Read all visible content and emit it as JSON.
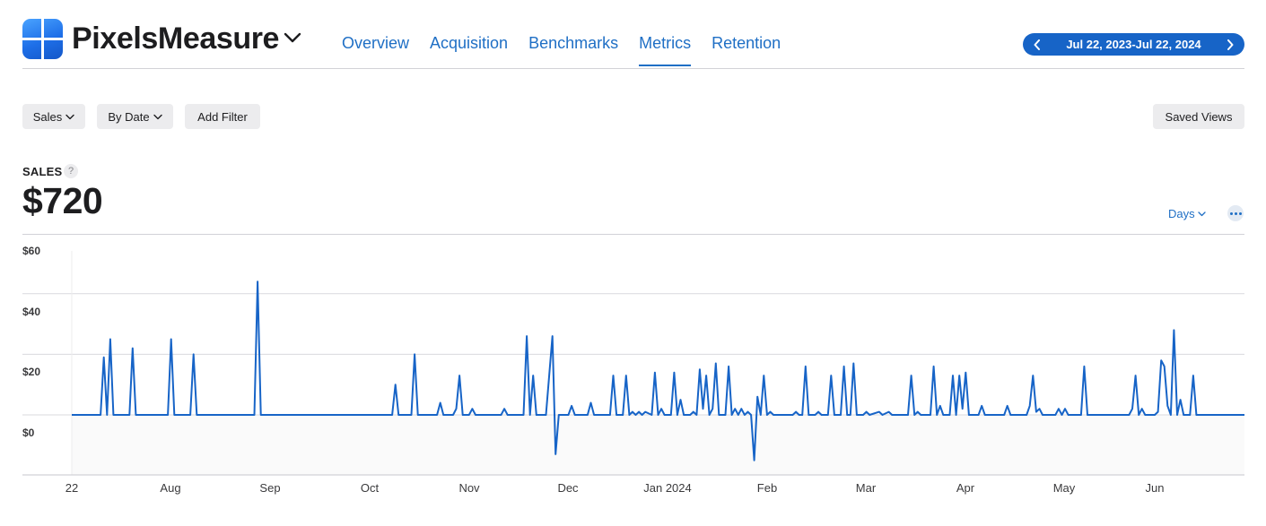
{
  "app": {
    "name": "PixelsMeasure",
    "icon": "app-grid-icon"
  },
  "nav": {
    "tabs": [
      {
        "label": "Overview",
        "active": false
      },
      {
        "label": "Acquisition",
        "active": false
      },
      {
        "label": "Benchmarks",
        "active": false
      },
      {
        "label": "Metrics",
        "active": true
      },
      {
        "label": "Retention",
        "active": false
      }
    ]
  },
  "date_range": {
    "label": "Jul 22, 2023-Jul 22, 2024",
    "prev_icon": "chevron-left-icon",
    "next_icon": "chevron-right-icon"
  },
  "filters": {
    "measure": "Sales",
    "group_by": "By Date",
    "add_filter": "Add Filter",
    "saved_views": "Saved Views"
  },
  "metric": {
    "label": "SALES",
    "help": "?",
    "value": "$720"
  },
  "granularity": {
    "label": "Days"
  },
  "colors": {
    "accent": "#1f6fc5",
    "line": "#1764c7",
    "pill": "#1764c7"
  },
  "chart_data": {
    "type": "line",
    "title": "",
    "xlabel": "",
    "ylabel": "",
    "x_range": [
      "2023-07-22",
      "2024-07-22"
    ],
    "ylim": [
      -15,
      60
    ],
    "y_ticks": [
      "$60",
      "$40",
      "$20",
      "$0"
    ],
    "x_ticks": [
      "22",
      "Aug",
      "Sep",
      "Oct",
      "Nov",
      "Dec",
      "Jan 2024",
      "Feb",
      "Mar",
      "Apr",
      "May",
      "Jun"
    ],
    "grid": true,
    "series": [
      {
        "color": "#1764c7",
        "points": [
          [
            "2023-07-22",
            0
          ],
          [
            "2023-07-31",
            0
          ],
          [
            "2023-08-01",
            19
          ],
          [
            "2023-08-02",
            0
          ],
          [
            "2023-08-03",
            25
          ],
          [
            "2023-08-04",
            0
          ],
          [
            "2023-08-09",
            0
          ],
          [
            "2023-08-10",
            22
          ],
          [
            "2023-08-11",
            0
          ],
          [
            "2023-08-21",
            0
          ],
          [
            "2023-08-22",
            25
          ],
          [
            "2023-08-23",
            0
          ],
          [
            "2023-08-28",
            0
          ],
          [
            "2023-08-29",
            20
          ],
          [
            "2023-08-30",
            0
          ],
          [
            "2023-08-28",
            0
          ],
          [
            "2023-09-17",
            0
          ],
          [
            "2023-09-18",
            44
          ],
          [
            "2023-09-19",
            0
          ],
          [
            "2023-10-30",
            0
          ],
          [
            "2023-10-31",
            10
          ],
          [
            "2023-11-01",
            0
          ],
          [
            "2023-11-05",
            0
          ],
          [
            "2023-11-06",
            20
          ],
          [
            "2023-11-07",
            0
          ],
          [
            "2023-11-13",
            0
          ],
          [
            "2023-11-14",
            4
          ],
          [
            "2023-11-15",
            0
          ],
          [
            "2023-11-18",
            0
          ],
          [
            "2023-11-19",
            2
          ],
          [
            "2023-11-20",
            13
          ],
          [
            "2023-11-21",
            0
          ],
          [
            "2023-11-23",
            0
          ],
          [
            "2023-11-24",
            2
          ],
          [
            "2023-11-25",
            0
          ],
          [
            "2023-12-03",
            0
          ],
          [
            "2023-12-04",
            2
          ],
          [
            "2023-12-05",
            0
          ],
          [
            "2023-12-10",
            0
          ],
          [
            "2023-12-11",
            26
          ],
          [
            "2023-12-12",
            0
          ],
          [
            "2023-12-13",
            13
          ],
          [
            "2023-12-14",
            0
          ],
          [
            "2023-12-17",
            0
          ],
          [
            "2023-12-18",
            13
          ],
          [
            "2023-12-19",
            26
          ],
          [
            "2023-12-20",
            -13
          ],
          [
            "2023-12-21",
            0
          ],
          [
            "2023-12-24",
            0
          ],
          [
            "2023-12-25",
            3
          ],
          [
            "2023-12-26",
            0
          ],
          [
            "2023-12-30",
            0
          ],
          [
            "2023-12-31",
            4
          ],
          [
            "2024-01-01",
            0
          ],
          [
            "2024-01-06",
            0
          ],
          [
            "2024-01-07",
            13
          ],
          [
            "2024-01-08",
            0
          ],
          [
            "2024-01-10",
            0
          ],
          [
            "2024-01-11",
            13
          ],
          [
            "2024-01-12",
            0
          ],
          [
            "2024-01-13",
            1
          ],
          [
            "2024-01-14",
            0
          ],
          [
            "2024-01-15",
            1
          ],
          [
            "2024-01-16",
            0
          ],
          [
            "2024-01-17",
            1
          ],
          [
            "2024-01-19",
            0
          ],
          [
            "2024-01-20",
            14
          ],
          [
            "2024-01-21",
            0
          ],
          [
            "2024-01-22",
            2
          ],
          [
            "2024-01-23",
            0
          ],
          [
            "2024-01-25",
            0
          ],
          [
            "2024-01-26",
            14
          ],
          [
            "2024-01-27",
            0
          ],
          [
            "2024-01-28",
            5
          ],
          [
            "2024-01-29",
            0
          ],
          [
            "2024-01-31",
            0
          ],
          [
            "2024-02-01",
            1
          ],
          [
            "2024-02-02",
            0
          ],
          [
            "2024-02-03",
            15
          ],
          [
            "2024-02-04",
            2
          ],
          [
            "2024-02-05",
            13
          ],
          [
            "2024-02-06",
            0
          ],
          [
            "2024-02-07",
            2
          ],
          [
            "2024-02-08",
            17
          ],
          [
            "2024-02-09",
            0
          ],
          [
            "2024-02-11",
            0
          ],
          [
            "2024-02-12",
            16
          ],
          [
            "2024-02-13",
            0
          ],
          [
            "2024-02-14",
            2
          ],
          [
            "2024-02-15",
            0
          ],
          [
            "2024-02-16",
            2
          ],
          [
            "2024-02-17",
            0
          ],
          [
            "2024-02-18",
            1
          ],
          [
            "2024-02-19",
            0
          ],
          [
            "2024-02-20",
            -15
          ],
          [
            "2024-02-21",
            6
          ],
          [
            "2024-02-22",
            0
          ],
          [
            "2024-02-23",
            13
          ],
          [
            "2024-02-24",
            0
          ],
          [
            "2024-02-25",
            1
          ],
          [
            "2024-02-26",
            0
          ],
          [
            "2024-03-03",
            0
          ],
          [
            "2024-03-04",
            1
          ],
          [
            "2024-03-05",
            0
          ],
          [
            "2024-03-06",
            0
          ],
          [
            "2024-03-07",
            16
          ],
          [
            "2024-03-08",
            0
          ],
          [
            "2024-03-10",
            0
          ],
          [
            "2024-03-11",
            1
          ],
          [
            "2024-03-12",
            0
          ],
          [
            "2024-03-14",
            0
          ],
          [
            "2024-03-15",
            13
          ],
          [
            "2024-03-16",
            0
          ],
          [
            "2024-03-18",
            0
          ],
          [
            "2024-03-19",
            16
          ],
          [
            "2024-03-20",
            0
          ],
          [
            "2024-03-21",
            0
          ],
          [
            "2024-03-22",
            17
          ],
          [
            "2024-03-23",
            0
          ],
          [
            "2024-03-25",
            0
          ],
          [
            "2024-03-26",
            1
          ],
          [
            "2024-03-27",
            0
          ],
          [
            "2024-03-30",
            1
          ],
          [
            "2024-03-31",
            0
          ],
          [
            "2024-04-02",
            1
          ],
          [
            "2024-04-03",
            0
          ],
          [
            "2024-04-08",
            0
          ],
          [
            "2024-04-09",
            13
          ],
          [
            "2024-04-10",
            0
          ],
          [
            "2024-04-11",
            1
          ],
          [
            "2024-04-12",
            0
          ],
          [
            "2024-04-15",
            0
          ],
          [
            "2024-04-16",
            16
          ],
          [
            "2024-04-17",
            0
          ],
          [
            "2024-04-18",
            3
          ],
          [
            "2024-04-19",
            0
          ],
          [
            "2024-04-21",
            0
          ],
          [
            "2024-04-22",
            13
          ],
          [
            "2024-04-23",
            0
          ],
          [
            "2024-04-24",
            13
          ],
          [
            "2024-04-25",
            2
          ],
          [
            "2024-04-26",
            14
          ],
          [
            "2024-04-27",
            0
          ],
          [
            "2024-04-30",
            0
          ],
          [
            "2024-05-01",
            3
          ],
          [
            "2024-05-02",
            0
          ],
          [
            "2024-05-08",
            0
          ],
          [
            "2024-05-09",
            3
          ],
          [
            "2024-05-10",
            0
          ],
          [
            "2024-05-15",
            0
          ],
          [
            "2024-05-16",
            3
          ],
          [
            "2024-05-17",
            13
          ],
          [
            "2024-05-18",
            1
          ],
          [
            "2024-05-19",
            2
          ],
          [
            "2024-05-20",
            0
          ],
          [
            "2024-05-24",
            0
          ],
          [
            "2024-05-25",
            2
          ],
          [
            "2024-05-26",
            0
          ],
          [
            "2024-05-27",
            2
          ],
          [
            "2024-05-28",
            0
          ],
          [
            "2024-06-01",
            0
          ],
          [
            "2024-06-02",
            16
          ],
          [
            "2024-06-03",
            0
          ],
          [
            "2024-06-16",
            0
          ],
          [
            "2024-06-17",
            2
          ],
          [
            "2024-06-18",
            13
          ],
          [
            "2024-06-19",
            0
          ],
          [
            "2024-06-20",
            2
          ],
          [
            "2024-06-21",
            0
          ],
          [
            "2024-06-24",
            0
          ],
          [
            "2024-06-25",
            1
          ],
          [
            "2024-06-26",
            18
          ],
          [
            "2024-06-27",
            16
          ],
          [
            "2024-06-28",
            3
          ],
          [
            "2024-06-29",
            0
          ],
          [
            "2024-06-30",
            28
          ],
          [
            "2024-07-01",
            0
          ],
          [
            "2024-07-02",
            5
          ],
          [
            "2024-07-03",
            0
          ],
          [
            "2024-07-05",
            0
          ],
          [
            "2024-07-06",
            13
          ],
          [
            "2024-07-07",
            0
          ]
        ]
      }
    ]
  }
}
